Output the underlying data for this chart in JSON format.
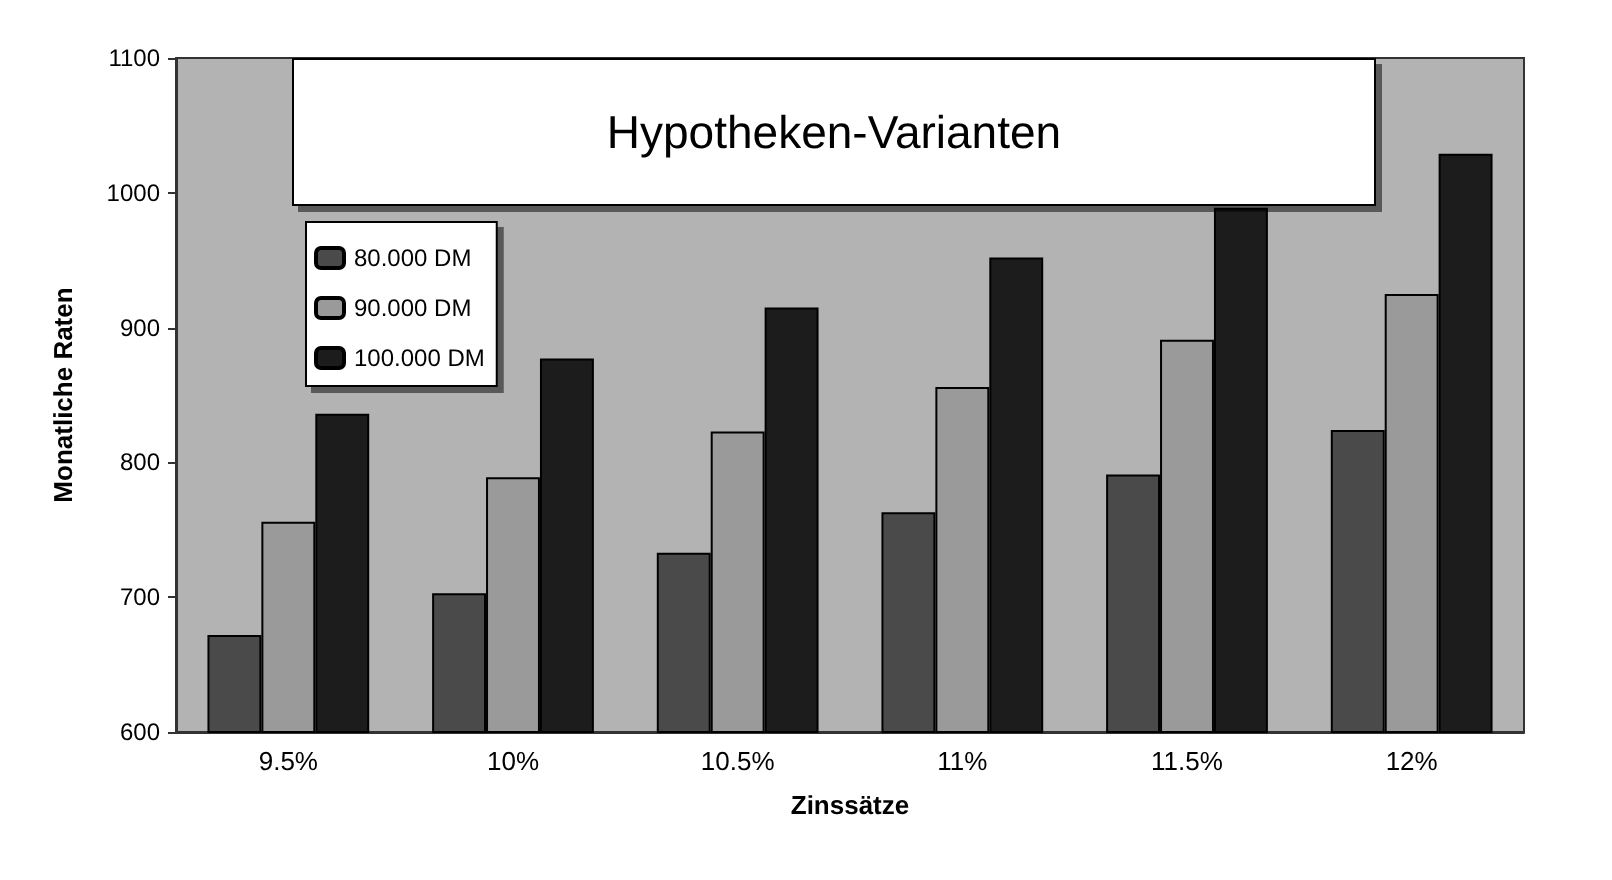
{
  "chart_data": {
    "type": "bar",
    "title": "Hypotheken-Varianten",
    "xlabel": "Zinssätze",
    "ylabel": "Monatliche Raten",
    "categories": [
      "9.5%",
      "10%",
      "10.5%",
      "11%",
      "11.5%",
      "12%"
    ],
    "series": [
      {
        "name": "80.000 DM",
        "color": "#4a4a4a",
        "values": [
          672,
          703,
          733,
          763,
          791,
          824
        ]
      },
      {
        "name": "90.000 DM",
        "color": "#9a9a9a",
        "values": [
          756,
          789,
          823,
          856,
          891,
          925
        ]
      },
      {
        "name": "100.000 DM",
        "color": "#1c1c1c",
        "values": [
          836,
          877,
          915,
          952,
          989,
          1029
        ]
      }
    ],
    "ylim": [
      600,
      1100
    ],
    "yticks": [
      600,
      700,
      800,
      900,
      1000,
      1100
    ],
    "grid": false,
    "legend": "top left"
  }
}
